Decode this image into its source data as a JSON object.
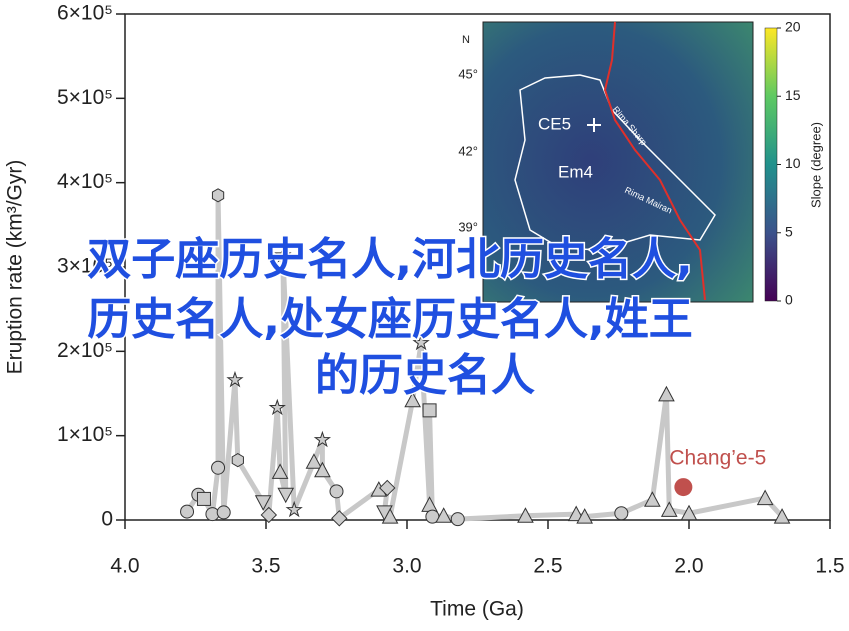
{
  "chart_data": {
    "type": "scatter",
    "x_label": "Time (Ga)",
    "y_label": "Eruption rate (km³/Gyr)",
    "xlim": [
      4.0,
      1.5
    ],
    "ylim": [
      0,
      600000
    ],
    "xticks": [
      {
        "value": 4,
        "label": "4.0"
      },
      3.5,
      {
        "value": 3,
        "label": "3.0"
      },
      2.5,
      {
        "value": 2,
        "label": "2.0"
      },
      1.5
    ],
    "yticks": [
      0,
      {
        "value": 100000,
        "label": "1×10⁵"
      },
      {
        "value": 200000,
        "label": "2×10⁵"
      },
      {
        "value": 300000,
        "label": "3×10⁵"
      },
      {
        "value": 400000,
        "label": "4×10⁵"
      },
      {
        "value": 500000,
        "label": "5×10⁵"
      },
      {
        "value": 600000,
        "label": "6×10⁵"
      }
    ],
    "line_color": "#c8c8c8",
    "marker_color": "#cccccc",
    "series": [
      {
        "x": [
          3.78,
          3.74,
          3.72,
          3.69,
          3.67,
          3.67,
          3.65,
          3.61,
          3.6,
          3.51,
          3.49,
          3.46,
          3.45,
          3.43,
          3.44,
          3.4,
          3.33,
          3.3,
          3.3,
          3.25,
          3.24,
          3.1,
          3.07,
          3.08,
          3.06,
          2.98,
          2.95,
          2.92,
          2.92,
          2.91,
          2.87,
          2.82,
          2.58,
          2.4,
          2.37,
          2.24,
          2.13,
          2.08,
          2.07,
          2.0,
          1.73,
          1.67
        ],
        "values": [
          10000,
          30000,
          25000,
          7000,
          62000,
          385000,
          9000,
          166000,
          71000,
          21000,
          6000,
          133000,
          57000,
          30000,
          314000,
          12000,
          69000,
          95000,
          59000,
          34000,
          2000,
          36000,
          38000,
          9000,
          4000,
          142000,
          210000,
          18000,
          130000,
          4000,
          5000,
          1000,
          5000,
          7000,
          4000,
          8000,
          24000,
          149000,
          12000,
          8000,
          26000,
          4000
        ],
        "markers": [
          "circle",
          "circle",
          "square",
          "circle",
          "circle",
          "hexagon",
          "circle",
          "star",
          "hexagon",
          "triangle-down",
          "diamond",
          "star",
          "triangle",
          "triangle-down",
          "star",
          "star",
          "triangle",
          "star",
          "triangle",
          "circle",
          "diamond",
          "triangle",
          "diamond",
          "triangle-down",
          "triangle",
          "triangle",
          "star",
          "triangle",
          "square",
          "circle",
          "triangle",
          "circle",
          "triangle",
          "triangle",
          "triangle",
          "circle",
          "triangle",
          "triangle",
          "triangle",
          "triangle",
          "triangle",
          "triangle"
        ]
      }
    ],
    "highlight": {
      "label": "Chang’e-5",
      "x": 2.02,
      "value": 39000,
      "color": "#c0504d"
    },
    "inset": {
      "north": "N",
      "lat_labels": [
        "45°",
        "42°",
        "39°"
      ],
      "labels": [
        "CE5",
        "Em4",
        "Rima Sharp",
        "Rima Mairan"
      ],
      "colorbar_label": "Slope (degree)",
      "colorbar_ticks": [
        20,
        15,
        10,
        5,
        0
      ]
    }
  },
  "overlay_text": [
    "双子座历史名人,河北历史名人,",
    "历史名人,处女座历史名人,姓王",
    "的历史名人"
  ]
}
